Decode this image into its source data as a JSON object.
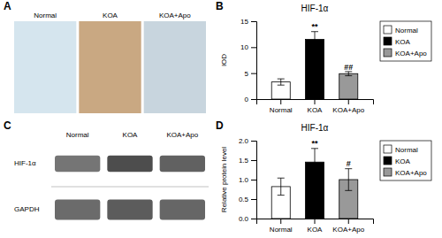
{
  "chart_data": [
    {
      "type": "image",
      "label": "A",
      "categories": [
        "Normal",
        "KOA",
        "KOA+Apo"
      ],
      "colors": [
        "#d5e5ee",
        "#c9a882",
        "#c8d5de"
      ]
    },
    {
      "type": "bar",
      "label": "B",
      "title": "HIF-1α",
      "categories": [
        "Normal",
        "KOA",
        "KOA+Apo"
      ],
      "values": [
        3.3,
        11.5,
        4.9
      ],
      "errors": [
        0.6,
        1.5,
        0.4
      ],
      "colors": [
        "white",
        "black",
        "#999999"
      ],
      "ylabel": "IOD",
      "ylim": [
        0,
        15
      ],
      "yticks": [
        0,
        5,
        10,
        15
      ],
      "annotations": [
        {
          "text": "**",
          "x": "KOA",
          "y": 13.4
        },
        {
          "text": "##",
          "x": "KOA+Apo",
          "y": 5.7
        }
      ],
      "legend": "right"
    },
    {
      "type": "image",
      "label": "C",
      "categories": [
        "Normal",
        "KOA",
        "KOA+Apo"
      ],
      "rows": [
        "HIF-1α",
        "GAPDH"
      ]
    },
    {
      "type": "bar",
      "label": "D",
      "title": "HIF-1α",
      "categories": [
        "Normal",
        "KOA",
        "KOA+Apo"
      ],
      "values": [
        0.82,
        1.45,
        1.0
      ],
      "errors": [
        0.22,
        0.35,
        0.28
      ],
      "colors": [
        "white",
        "black",
        "#999999"
      ],
      "ylabel": "Relative protein level",
      "ylim": [
        0.0,
        2.0
      ],
      "yticks": [
        {
          "value": 0,
          "label": "0.0"
        },
        0.5,
        {
          "value": 1,
          "label": "1.0"
        },
        1.5,
        {
          "value": 2,
          "label": "2.0"
        }
      ],
      "annotations": [
        {
          "text": "**",
          "x": "KOA",
          "y": 1.87
        },
        {
          "text": "#",
          "x": "KOA+Apo",
          "y": 1.33
        }
      ],
      "legend": "right"
    }
  ]
}
